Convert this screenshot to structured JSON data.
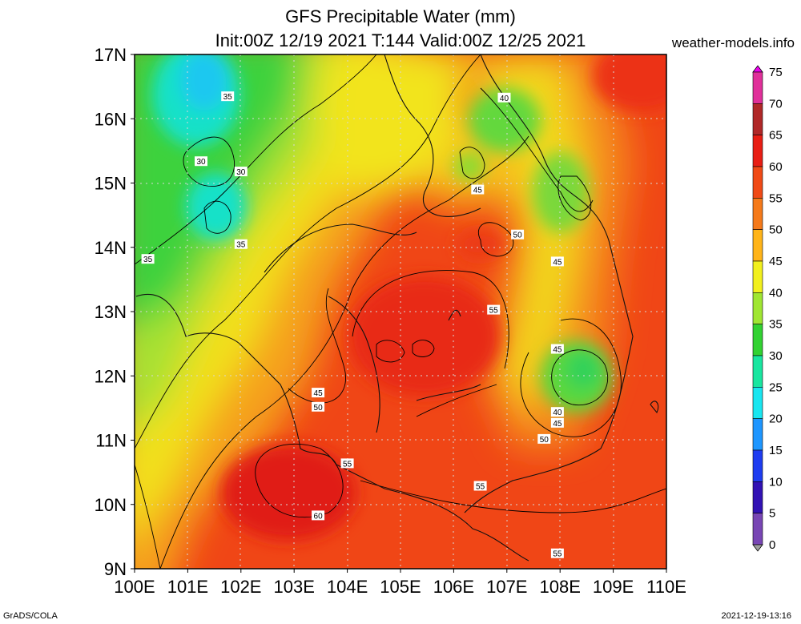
{
  "header": {
    "title": "GFS Precipitable Water (mm)",
    "subtitle": "Init:00Z 12/19 2021 T:144 Valid:00Z 12/25 2021",
    "brand": "weather-models.info"
  },
  "footer": {
    "left": "GrADS/COLA",
    "right": "2021-12-19-13:16"
  },
  "map": {
    "x_ticks": [
      "100E",
      "101E",
      "102E",
      "103E",
      "104E",
      "105E",
      "106E",
      "107E",
      "108E",
      "109E",
      "110E"
    ],
    "y_ticks": [
      "17N",
      "16N",
      "15N",
      "14N",
      "13N",
      "12N",
      "11N",
      "10N",
      "9N"
    ],
    "contour_labels": [
      {
        "text": "35",
        "lon": 101.75,
        "lat": 16.35
      },
      {
        "text": "40",
        "lon": 106.95,
        "lat": 16.33
      },
      {
        "text": "30",
        "lon": 101.25,
        "lat": 15.34
      },
      {
        "text": "30",
        "lon": 102.0,
        "lat": 15.18
      },
      {
        "text": "45",
        "lon": 106.45,
        "lat": 14.9
      },
      {
        "text": "50",
        "lon": 107.2,
        "lat": 14.2
      },
      {
        "text": "35",
        "lon": 102.0,
        "lat": 14.05
      },
      {
        "text": "35",
        "lon": 100.25,
        "lat": 13.82
      },
      {
        "text": "45",
        "lon": 107.95,
        "lat": 13.78
      },
      {
        "text": "55",
        "lon": 106.75,
        "lat": 13.03
      },
      {
        "text": "45",
        "lon": 107.95,
        "lat": 12.42
      },
      {
        "text": "45",
        "lon": 103.45,
        "lat": 11.74
      },
      {
        "text": "50",
        "lon": 103.45,
        "lat": 11.52
      },
      {
        "text": "40",
        "lon": 107.95,
        "lat": 11.44
      },
      {
        "text": "45",
        "lon": 107.95,
        "lat": 11.27
      },
      {
        "text": "50",
        "lon": 107.7,
        "lat": 11.02
      },
      {
        "text": "55",
        "lon": 104.0,
        "lat": 10.64
      },
      {
        "text": "55",
        "lon": 106.5,
        "lat": 10.29
      },
      {
        "text": "60",
        "lon": 103.45,
        "lat": 9.83
      },
      {
        "text": "55",
        "lon": 107.95,
        "lat": 9.24
      }
    ]
  },
  "colorbar": {
    "labels": [
      "75",
      "70",
      "65",
      "60",
      "55",
      "50",
      "45",
      "40",
      "35",
      "30",
      "25",
      "20",
      "15",
      "10",
      "5",
      "0"
    ],
    "colors": [
      "#ee00ee",
      "#e0309a",
      "#b02828",
      "#e81e14",
      "#f04a16",
      "#f57a1a",
      "#ffb419",
      "#f2f01e",
      "#a0e632",
      "#32d232",
      "#19e6a0",
      "#19e6f0",
      "#1e96ff",
      "#1e3cf0",
      "#3212b4",
      "#7846b4",
      "#a0a0a0"
    ]
  }
}
